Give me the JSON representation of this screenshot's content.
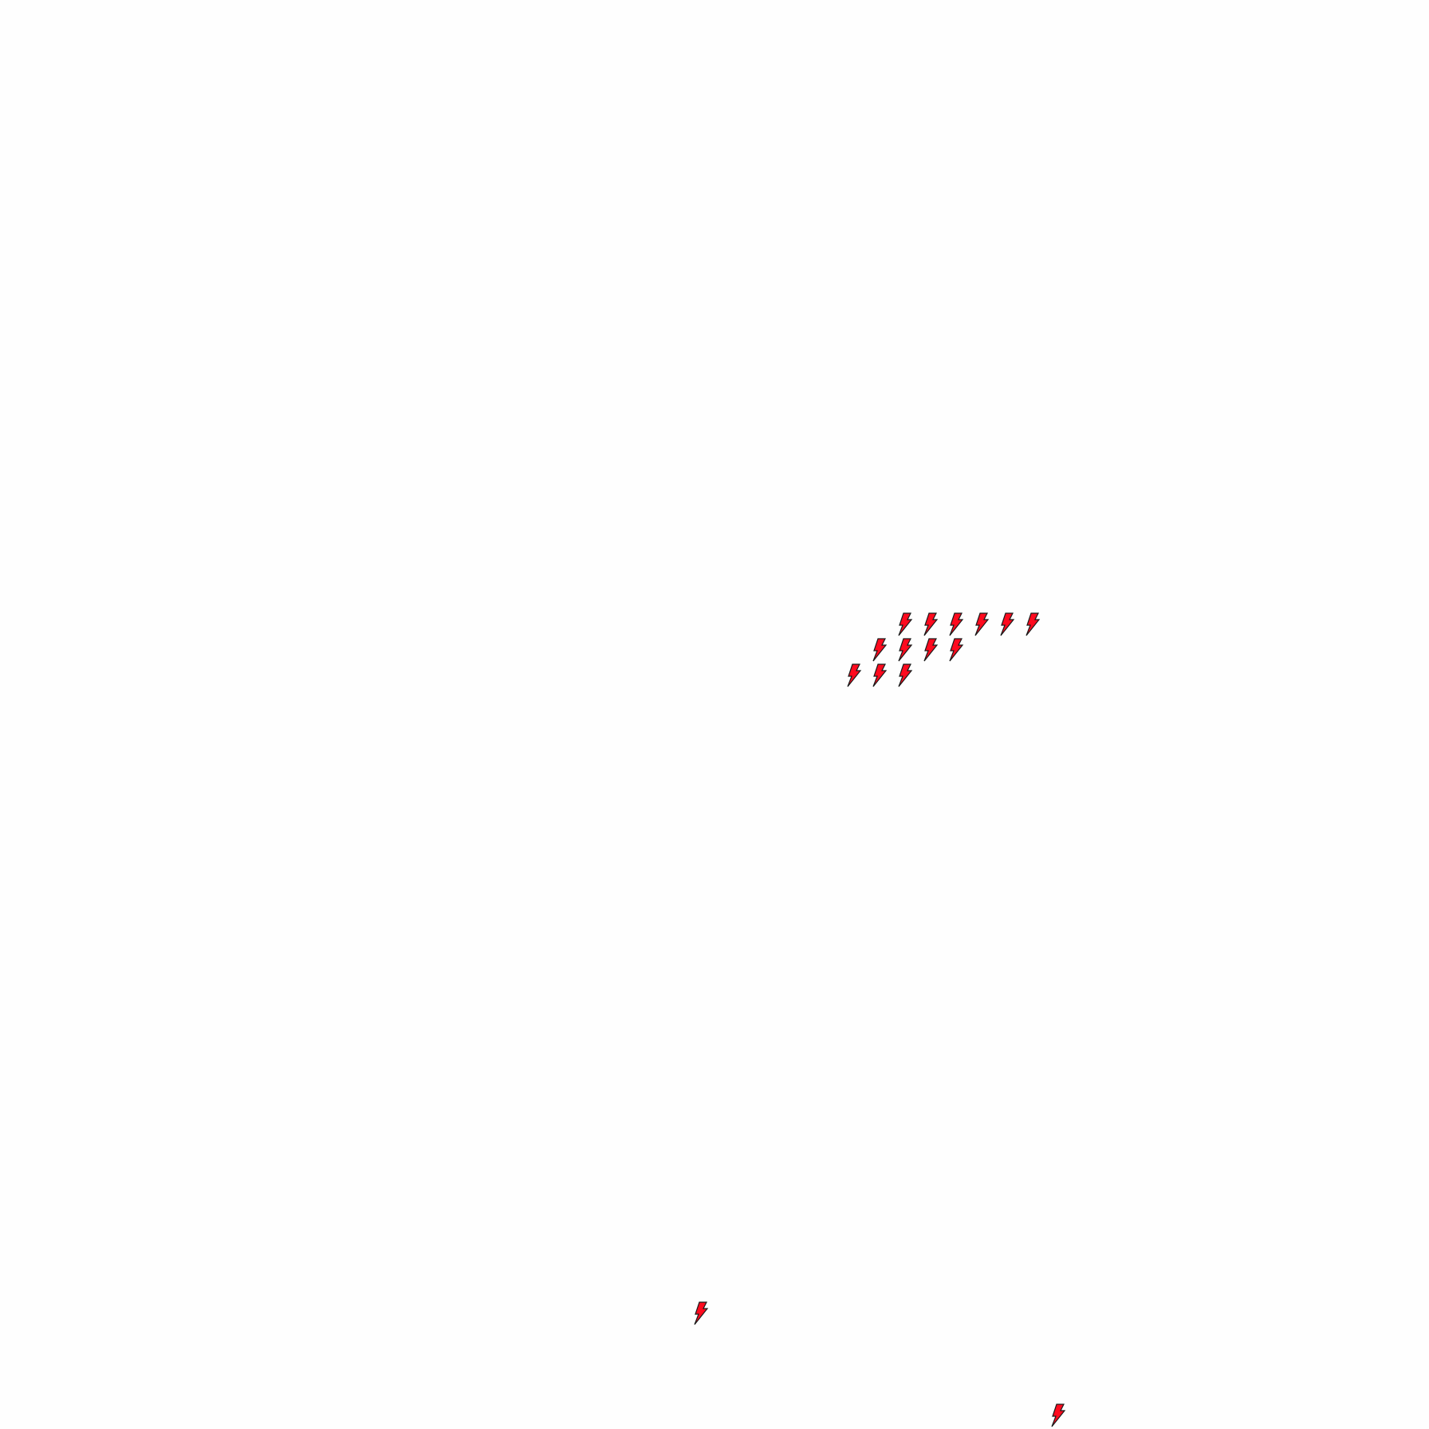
{
  "map": {
    "marker_icon": "lightning-bolt-icon",
    "marker_fill": "#ff0a1e",
    "marker_stroke": "#1a1a1a",
    "background": "#fefefe"
  }
}
